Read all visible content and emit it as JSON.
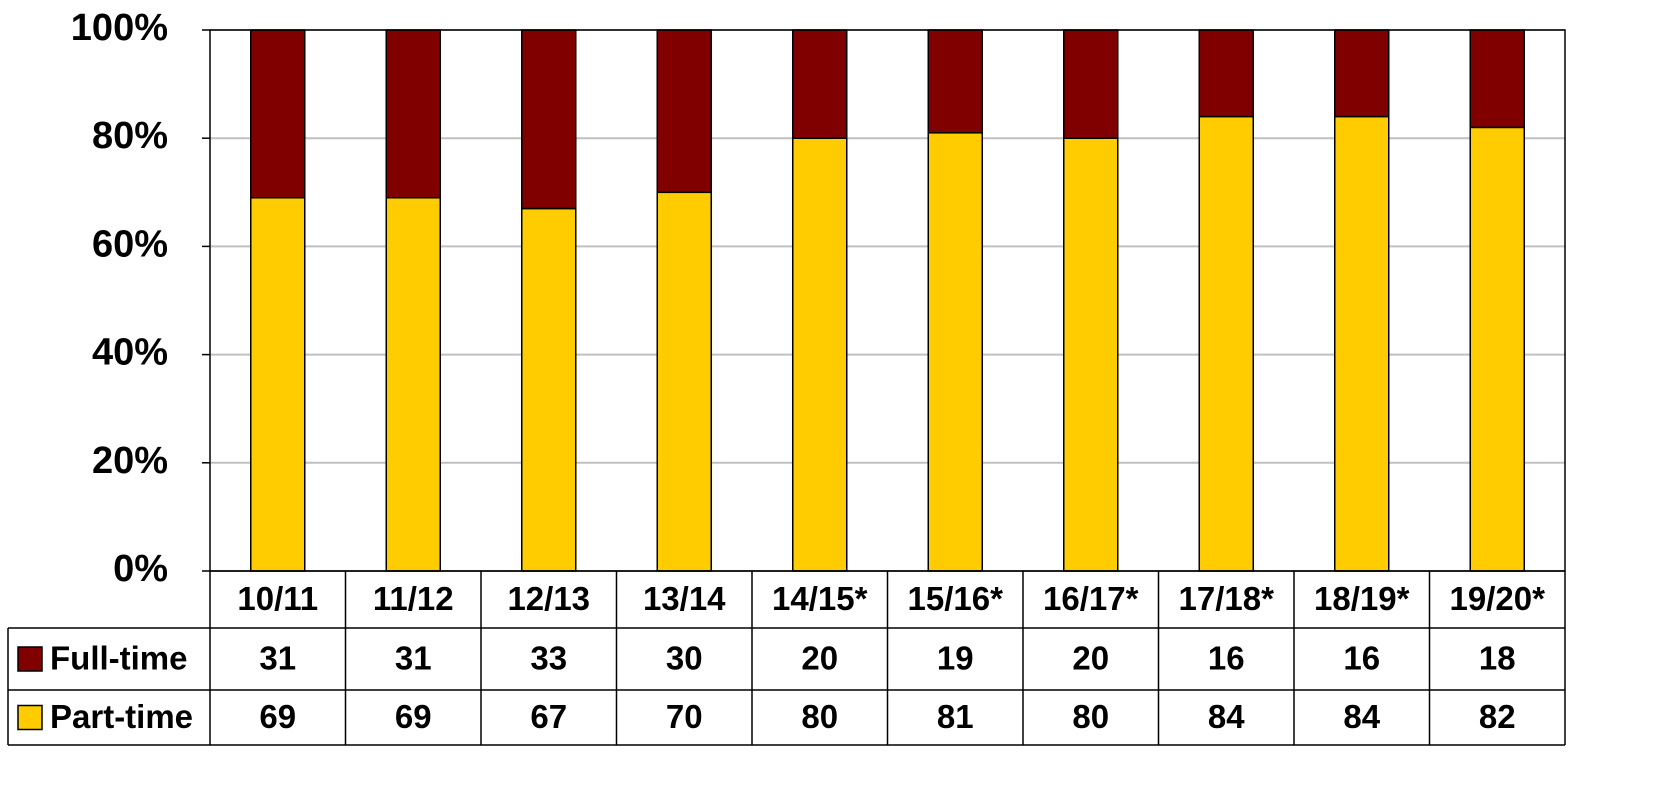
{
  "chart_data": {
    "type": "stacked_bar",
    "categories": [
      "10/11",
      "11/12",
      "12/13",
      "13/14",
      "14/15*",
      "15/16*",
      "16/17*",
      "17/18*",
      "18/19*",
      "19/20*"
    ],
    "series": [
      {
        "name": "Full-time",
        "color": "#800000",
        "values": [
          31,
          31,
          33,
          30,
          20,
          19,
          20,
          16,
          16,
          18
        ]
      },
      {
        "name": "Part-time",
        "color": "#ffcc00",
        "values": [
          69,
          69,
          67,
          70,
          80,
          81,
          80,
          84,
          84,
          82
        ]
      }
    ],
    "ylim": [
      0,
      100
    ],
    "yticks": [
      {
        "value": 0,
        "label": "0%"
      },
      {
        "value": 20,
        "label": "20%"
      },
      {
        "value": 40,
        "label": "40%"
      },
      {
        "value": 60,
        "label": "60%"
      },
      {
        "value": 80,
        "label": "80%"
      },
      {
        "value": 100,
        "label": "100%"
      }
    ],
    "grid": true
  }
}
